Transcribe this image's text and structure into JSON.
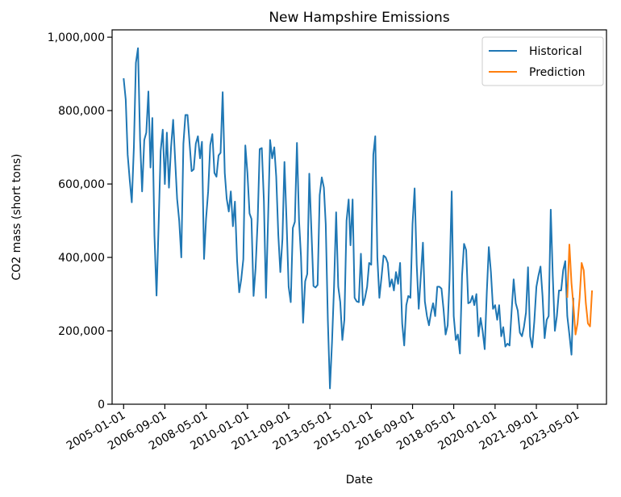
{
  "chart_data": {
    "type": "line",
    "title": "New Hampshire Emissions",
    "xlabel": "Date",
    "ylabel": "CO2 mass (short tons)",
    "xlim": [
      "2004-07-15",
      "2024-07-01"
    ],
    "ylim": [
      0,
      1020000
    ],
    "x_ticks": [
      "2005-01-01",
      "2006-09-01",
      "2008-05-01",
      "2010-01-01",
      "2011-09-01",
      "2013-05-01",
      "2015-01-01",
      "2016-09-01",
      "2018-05-01",
      "2020-01-01",
      "2021-09-01",
      "2023-05-01"
    ],
    "y_ticks": [
      0,
      200000,
      400000,
      600000,
      800000,
      1000000
    ],
    "y_tick_labels": [
      "0",
      "200,000",
      "400,000",
      "600,000",
      "800,000",
      "1,000,000"
    ],
    "legend_position": "top-right",
    "grid": false,
    "series": [
      {
        "name": "Historical",
        "color": "#1f77b4",
        "start": "2005-01",
        "values": [
          888000,
          830000,
          680000,
          610000,
          550000,
          700000,
          930000,
          970000,
          720000,
          580000,
          720000,
          740000,
          852000,
          645000,
          780000,
          460000,
          296000,
          490000,
          690000,
          748000,
          600000,
          740000,
          590000,
          700000,
          775000,
          660000,
          560000,
          500000,
          400000,
          710000,
          788000,
          788000,
          710000,
          635000,
          640000,
          710000,
          730000,
          670000,
          715000,
          396000,
          505000,
          580000,
          706000,
          736000,
          630000,
          620000,
          678000,
          685000,
          850000,
          630000,
          560000,
          525000,
          580000,
          485000,
          552000,
          390000,
          305000,
          340000,
          395000,
          705000,
          630000,
          520000,
          505000,
          295000,
          370000,
          500000,
          695000,
          698000,
          555000,
          290000,
          505000,
          720000,
          670000,
          700000,
          620000,
          460000,
          360000,
          450000,
          660000,
          500000,
          320000,
          278000,
          480000,
          497000,
          712000,
          500000,
          403000,
          222000,
          335000,
          355000,
          628000,
          475000,
          322000,
          318000,
          325000,
          570000,
          618000,
          590000,
          490000,
          230000,
          43000,
          170000,
          320000,
          523000,
          320000,
          278000,
          175000,
          230000,
          500000,
          558000,
          433000,
          558000,
          290000,
          280000,
          278000,
          410000,
          270000,
          290000,
          320000,
          385000,
          380000,
          680000,
          730000,
          400000,
          290000,
          345000,
          405000,
          400000,
          385000,
          320000,
          340000,
          310000,
          360000,
          328000,
          385000,
          220000,
          160000,
          270000,
          295000,
          290000,
          490000,
          588000,
          380000,
          260000,
          350000,
          440000,
          280000,
          240000,
          215000,
          250000,
          275000,
          240000,
          320000,
          320000,
          315000,
          260000,
          190000,
          215000,
          340000,
          580000,
          240000,
          175000,
          190000,
          138000,
          350000,
          437000,
          420000,
          275000,
          278000,
          295000,
          270000,
          300000,
          185000,
          235000,
          200000,
          150000,
          305000,
          428000,
          360000,
          260000,
          270000,
          230000,
          270000,
          185000,
          210000,
          157000,
          165000,
          160000,
          255000,
          340000,
          275000,
          255000,
          195000,
          185000,
          210000,
          250000,
          373000,
          185000,
          155000,
          225000,
          320000,
          350000,
          375000,
          295000,
          180000,
          230000,
          240000,
          530000,
          350000,
          200000,
          240000,
          310000,
          310000,
          365000,
          390000,
          240000,
          190000,
          135000,
          290000
        ]
      },
      {
        "name": "Prediction",
        "color": "#ff7f0e",
        "start": "2022-12",
        "values": [
          290000,
          435000,
          330000,
          270000,
          190000,
          220000,
          290000,
          385000,
          365000,
          275000,
          220000,
          212000,
          310000
        ]
      }
    ]
  }
}
